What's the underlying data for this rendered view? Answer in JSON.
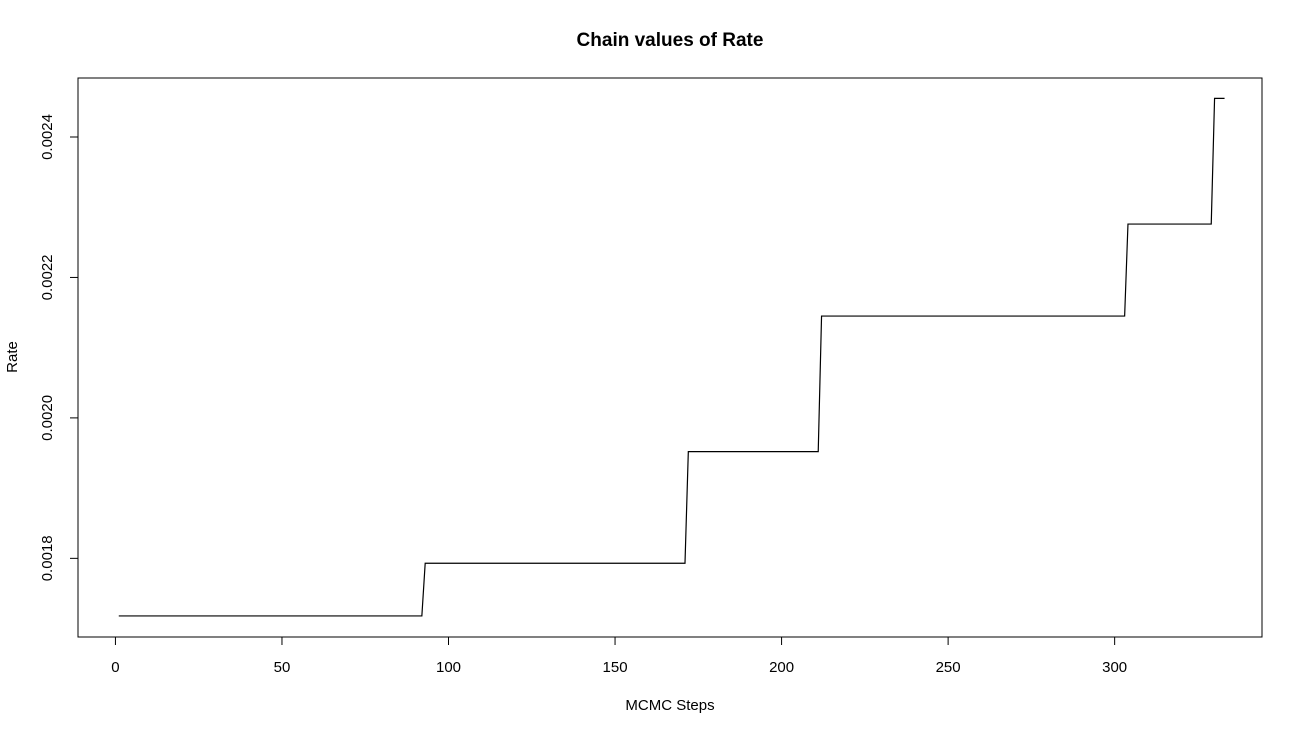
{
  "chart_data": {
    "type": "line",
    "title": "Chain values of Rate",
    "xlabel": "MCMC Steps",
    "ylabel": "Rate",
    "xlim": [
      -11.24,
      344.24
    ],
    "ylim": [
      0.001688,
      0.002484
    ],
    "x_ticks": [
      0,
      50,
      100,
      150,
      200,
      250,
      300
    ],
    "x_tick_labels": [
      "0",
      "50",
      "100",
      "150",
      "200",
      "250",
      "300"
    ],
    "y_ticks": [
      0.0018,
      0.002,
      0.0022,
      0.0024
    ],
    "y_tick_labels": [
      "0.0018",
      "0.0020",
      "0.0022",
      "0.0024"
    ],
    "grid": false,
    "legend": "none",
    "line_color": "#000000",
    "series": [
      {
        "x": [
          1,
          92,
          93,
          171,
          172,
          211,
          212,
          303,
          304,
          329,
          330,
          333
        ],
        "values": [
          0.001718,
          0.001718,
          0.001793,
          0.001793,
          0.001952,
          0.001952,
          0.002145,
          0.002145,
          0.002276,
          0.002276,
          0.002455,
          0.002455
        ]
      }
    ]
  }
}
